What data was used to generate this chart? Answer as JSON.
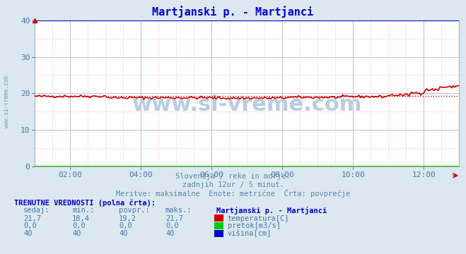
{
  "title": "Martjanski p. - Martjanci",
  "title_color": "#0000cc",
  "bg_color": "#dce8f0",
  "plot_bg_color": "#ffffff",
  "xlabel_texts": [
    "02:00",
    "04:00",
    "06:00",
    "08:00",
    "10:00",
    "12:00"
  ],
  "ylim": [
    0,
    40
  ],
  "xlim": [
    0,
    288
  ],
  "yticks": [
    0,
    10,
    20,
    30,
    40
  ],
  "xtick_positions": [
    24,
    72,
    120,
    168,
    216,
    264
  ],
  "n_points": 289,
  "temp_base": 19.2,
  "temp_min": 18.4,
  "temp_max": 21.7,
  "height_value": 40,
  "pretok_value": 0.0,
  "watermark": "www.si-vreme.com",
  "subtitle1": "Slovenija / reke in morje.",
  "subtitle2": "zadnjih 12ur / 5 minut.",
  "subtitle3": "Meritve: maksimalne  Enote: metrične  Črta: povprečje",
  "table_header": "TRENUTNE VREDNOSTI (polna črta):",
  "col_headers": [
    "sedaj:",
    "min.:",
    "povpr.:",
    "maks.:"
  ],
  "row1_vals": [
    "21,7",
    "18,4",
    "19,2",
    "21,7"
  ],
  "row2_vals": [
    "0,0",
    "0,0",
    "0,0",
    "0,0"
  ],
  "row3_vals": [
    "40",
    "40",
    "40",
    "40"
  ],
  "legend_title": "Martjanski p. - Martjanci",
  "legend_items": [
    "temperatura[C]",
    "pretok[m3/s]",
    "višina[cm]"
  ],
  "legend_colors": [
    "#cc0000",
    "#00cc00",
    "#0000cc"
  ],
  "temp_color": "#cc0000",
  "height_color": "#0000cc",
  "pretok_color": "#00cc00",
  "grid_minor_color": "#f0b0b0",
  "grid_major_color": "#b0b0b0",
  "watermark_color": "#b8cee0",
  "sidebar_color": "#7799bb",
  "axis_text_color": "#4477aa",
  "subtitle_color": "#5588aa"
}
